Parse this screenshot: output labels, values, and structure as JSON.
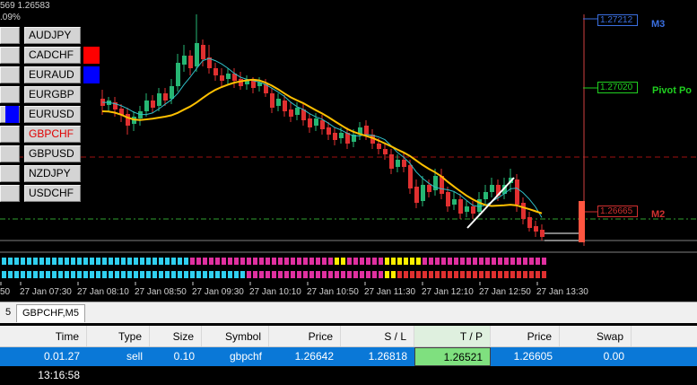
{
  "chart": {
    "header_price": "569 1.26583",
    "header_pct": ".09%",
    "time_labels": [
      "50",
      "27 Jan 07:30",
      "27 Jan 08:10",
      "27 Jan 08:50",
      "27 Jan 09:30",
      "27 Jan 10:10",
      "27 Jan 10:50",
      "27 Jan 11:30",
      "27 Jan 12:10",
      "27 Jan 12:50",
      "27 Jan 13:30"
    ],
    "levels": [
      {
        "name": "M3",
        "price": "1.27212",
        "color": "#3a6fe0"
      },
      {
        "name": "Pivot Po",
        "price": "1.27020",
        "color": "#20d020"
      },
      {
        "name": "M2",
        "price": "1.26665",
        "color": "#d03030"
      }
    ],
    "colors": {
      "bull": "#26b673",
      "bear": "#e03030",
      "ma_fast": "#30c0c8",
      "ma_slow": "#ffc000",
      "grid_red": "#a01010",
      "grid_green": "#30a030"
    }
  },
  "symbols": [
    {
      "label": "AUDJPY",
      "color": ""
    },
    {
      "label": "CADCHF",
      "color": "#ff0000"
    },
    {
      "label": "EURAUD",
      "color": "#0000ff"
    },
    {
      "label": "EURGBP",
      "color": ""
    },
    {
      "label": "EURUSD",
      "color": ""
    },
    {
      "label": "GBPCHF",
      "color": "",
      "active": true
    },
    {
      "label": "GBPUSD",
      "color": ""
    },
    {
      "label": "NZDJPY",
      "color": ""
    },
    {
      "label": "USDCHF",
      "color": ""
    }
  ],
  "tabs": {
    "prev": "5",
    "current": "GBPCHF,M5"
  },
  "trade_table": {
    "headers": {
      "time": "Time",
      "type": "Type",
      "size": "Size",
      "symbol": "Symbol",
      "price": "Price",
      "sl": "S / L",
      "tp": "T / P",
      "price2": "Price",
      "swap": "Swap"
    },
    "row": {
      "time": "0.01.27 13:16:58",
      "type": "sell",
      "size": "0.10",
      "symbol": "gbpchf",
      "price": "1.26642",
      "sl": "1.26818",
      "tp": "1.26521",
      "price2": "1.26605",
      "swap": "0.00"
    }
  }
}
